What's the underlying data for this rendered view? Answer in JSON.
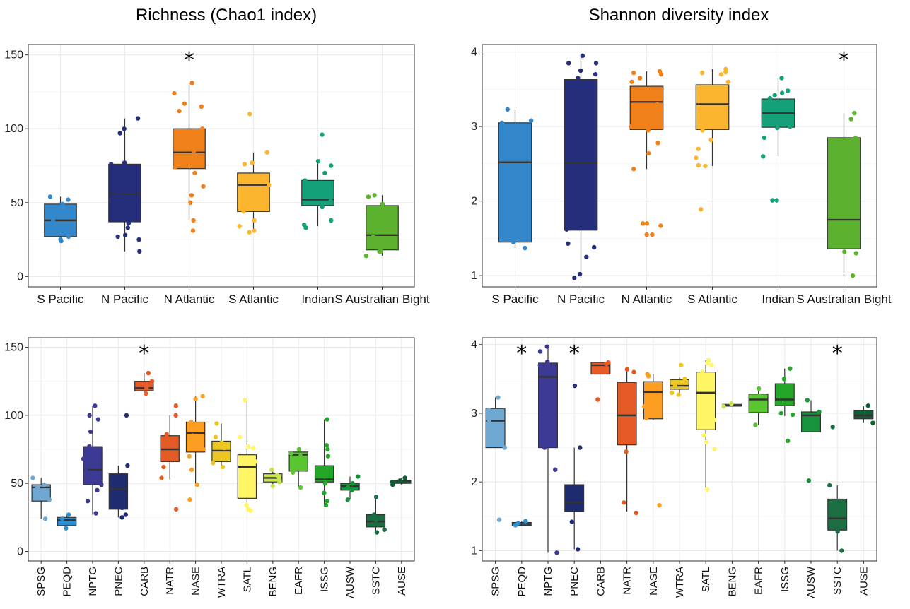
{
  "titles": {
    "left": "Richness (Chao1 index)",
    "right": "Shannon diversity index"
  },
  "chart_data": [
    {
      "type": "box",
      "title": "Richness (Chao1 index)",
      "xlabel": "",
      "ylabel": "",
      "ylim": [
        -7,
        157
      ],
      "yticks": [
        0,
        50,
        100,
        150
      ],
      "grid": true,
      "categories": [
        "S Pacific",
        "N Pacific",
        "N Atlantic",
        "S Atlantic",
        "Indian",
        "S Australian Bight"
      ],
      "colors": [
        "#3388cc",
        "#252e7a",
        "#f08019",
        "#fbb52e",
        "#14a078",
        "#5cb22e"
      ],
      "boxes": [
        {
          "q1": 27,
          "median": 38,
          "q3": 49,
          "lo": 26,
          "hi": 54,
          "pts": [
            54,
            52,
            49,
            47,
            38,
            30,
            27,
            25,
            24
          ]
        },
        {
          "q1": 37,
          "median": 56,
          "q3": 76,
          "lo": 17,
          "hi": 107,
          "pts": [
            107,
            100,
            97,
            77,
            76,
            70,
            55,
            45,
            36,
            33,
            28,
            27,
            25,
            17
          ]
        },
        {
          "q1": 73,
          "median": 84,
          "q3": 100,
          "lo": 38,
          "hi": 131,
          "pts": [
            131,
            124,
            117,
            115,
            112,
            100,
            85,
            82,
            74,
            70,
            61,
            55,
            50,
            38,
            31
          ]
        },
        {
          "q1": 44,
          "median": 62,
          "q3": 70,
          "lo": 30,
          "hi": 84,
          "pts": [
            110,
            84,
            77,
            76,
            66,
            62,
            49,
            44,
            38,
            34,
            31,
            30
          ]
        },
        {
          "q1": 48,
          "median": 52,
          "q3": 65,
          "lo": 34,
          "hi": 78,
          "pts": [
            96,
            78,
            75,
            70,
            65,
            55,
            51,
            47,
            38,
            35,
            33
          ]
        },
        {
          "q1": 18,
          "median": 28,
          "q3": 48,
          "lo": 14,
          "hi": 55,
          "pts": [
            55,
            54,
            49,
            27,
            17,
            17,
            14
          ]
        }
      ],
      "annotations": [
        {
          "category": "N Atlantic",
          "text": "*"
        }
      ]
    },
    {
      "type": "box",
      "title": "Shannon diversity index",
      "xlabel": "",
      "ylabel": "",
      "ylim": [
        0.85,
        4.1
      ],
      "yticks": [
        1,
        2,
        3,
        4
      ],
      "grid": true,
      "categories": [
        "S Pacific",
        "N Pacific",
        "N Atlantic",
        "S Atlantic",
        "Indian",
        "S Australian Bight"
      ],
      "colors": [
        "#3388cc",
        "#252e7a",
        "#f08019",
        "#fbb52e",
        "#14a078",
        "#5cb22e"
      ],
      "boxes": [
        {
          "q1": 1.45,
          "median": 2.52,
          "q3": 3.05,
          "lo": 1.37,
          "hi": 3.23,
          "pts": [
            3.23,
            3.08,
            3.05,
            1.45,
            1.37
          ]
        },
        {
          "q1": 1.61,
          "median": 2.51,
          "q3": 3.63,
          "lo": 0.97,
          "hi": 3.95,
          "pts": [
            3.95,
            3.85,
            3.85,
            3.75,
            3.7,
            3.65,
            1.62,
            1.43,
            1.38,
            1.25,
            1.02,
            0.97
          ]
        },
        {
          "q1": 2.96,
          "median": 3.33,
          "q3": 3.54,
          "lo": 2.43,
          "hi": 3.74,
          "pts": [
            3.74,
            3.72,
            3.7,
            3.65,
            3.6,
            3.5,
            3.3,
            3.0,
            2.95,
            2.78,
            2.64,
            2.43,
            1.7,
            1.7,
            1.67,
            1.55,
            1.55
          ]
        },
        {
          "q1": 2.96,
          "median": 3.3,
          "q3": 3.56,
          "lo": 2.47,
          "hi": 3.77,
          "pts": [
            3.77,
            3.73,
            3.72,
            3.7,
            3.6,
            3.45,
            3.4,
            2.95,
            2.82,
            2.7,
            2.58,
            2.48,
            2.47,
            1.89
          ]
        },
        {
          "q1": 2.99,
          "median": 3.18,
          "q3": 3.37,
          "lo": 2.6,
          "hi": 3.65,
          "pts": [
            3.65,
            3.48,
            3.45,
            3.42,
            3.38,
            3.05,
            3.0,
            2.98,
            2.85,
            2.6,
            2.01,
            2.01
          ]
        },
        {
          "q1": 1.36,
          "median": 1.75,
          "q3": 2.85,
          "lo": 1.0,
          "hi": 3.18,
          "pts": [
            3.18,
            3.1,
            2.85,
            1.32,
            1.3,
            1.0
          ]
        }
      ],
      "annotations": [
        {
          "category": "S Australian Bight",
          "text": "*"
        }
      ]
    },
    {
      "type": "box",
      "title": "",
      "xlabel": "",
      "ylabel": "",
      "ylim": [
        -7,
        157
      ],
      "yticks": [
        0,
        50,
        100,
        150
      ],
      "grid": true,
      "categories": [
        "SPSG",
        "PEQD",
        "NPTG",
        "PNEC",
        "CARB",
        "NATR",
        "NASE",
        "WTRA",
        "SATL",
        "BENG",
        "EAFR",
        "ISSG",
        "AUSW",
        "SSTC",
        "AUSE"
      ],
      "colors": [
        "#6fa8d2",
        "#2e8fd0",
        "#3d3a96",
        "#1e2b6e",
        "#ea5a26",
        "#e45a27",
        "#fb9e21",
        "#ecc621",
        "#fff565",
        "#c8e650",
        "#58c531",
        "#24a628",
        "#16933b",
        "#1a6e42",
        "#0d5e35"
      ],
      "boxes": [
        {
          "q1": 37,
          "median": 47,
          "q3": 49,
          "lo": 24,
          "hi": 54,
          "pts": [
            54,
            49,
            47,
            45,
            38,
            24
          ]
        },
        {
          "q1": 19,
          "median": 23,
          "q3": 25,
          "lo": 17,
          "hi": 27,
          "pts": [
            27,
            24,
            21,
            17
          ]
        },
        {
          "q1": 49,
          "median": 60,
          "q3": 77,
          "lo": 27,
          "hi": 107,
          "pts": [
            107,
            100,
            97,
            88,
            77,
            68,
            59,
            49,
            45,
            37,
            28
          ]
        },
        {
          "q1": 31,
          "median": 46,
          "q3": 57,
          "lo": 25,
          "hi": 63,
          "pts": [
            100,
            63,
            56,
            32,
            27,
            25
          ]
        },
        {
          "q1": 118,
          "median": 120,
          "q3": 125,
          "lo": 115,
          "hi": 131,
          "pts": [
            131,
            125,
            120,
            116
          ]
        },
        {
          "q1": 66,
          "median": 75,
          "q3": 85,
          "lo": 53,
          "hi": 100,
          "pts": [
            107,
            100,
            86,
            70,
            62,
            54,
            31
          ]
        },
        {
          "q1": 73,
          "median": 87,
          "q3": 95,
          "lo": 50,
          "hi": 114,
          "pts": [
            114,
            112,
            95,
            85,
            80,
            75,
            70,
            60,
            49,
            38
          ]
        },
        {
          "q1": 66,
          "median": 74,
          "q3": 81,
          "lo": 61,
          "hi": 94,
          "pts": [
            94,
            84,
            80,
            76,
            70,
            65,
            62
          ]
        },
        {
          "q1": 39,
          "median": 62,
          "q3": 71,
          "lo": 30,
          "hi": 111,
          "pts": [
            111,
            84,
            77,
            76,
            66,
            49,
            44,
            34,
            31,
            30
          ]
        },
        {
          "q1": 51,
          "median": 54,
          "q3": 57,
          "lo": 48,
          "hi": 60,
          "pts": [
            60,
            56,
            54,
            51,
            48
          ]
        },
        {
          "q1": 59,
          "median": 71,
          "q3": 73,
          "lo": 47,
          "hi": 75,
          "pts": [
            75,
            72,
            70,
            58,
            47
          ]
        },
        {
          "q1": 51,
          "median": 53,
          "q3": 63,
          "lo": 33,
          "hi": 97,
          "pts": [
            97,
            78,
            75,
            70,
            60,
            55,
            50,
            43,
            37,
            34
          ]
        },
        {
          "q1": 45,
          "median": 48,
          "q3": 50,
          "lo": 38,
          "hi": 55,
          "pts": [
            55,
            50,
            47,
            45,
            38
          ]
        },
        {
          "q1": 18,
          "median": 22,
          "q3": 27,
          "lo": 14,
          "hi": 40,
          "pts": [
            40,
            27,
            23,
            20,
            16,
            14
          ]
        },
        {
          "q1": 50,
          "median": 52,
          "q3": 52,
          "lo": 49,
          "hi": 54,
          "pts": [
            54,
            52,
            51,
            49
          ]
        }
      ],
      "annotations": [
        {
          "category": "CARB",
          "text": "*"
        }
      ]
    },
    {
      "type": "box",
      "title": "",
      "xlabel": "",
      "ylabel": "",
      "ylim": [
        0.85,
        4.1
      ],
      "yticks": [
        1,
        2,
        3,
        4
      ],
      "grid": true,
      "categories": [
        "SPSG",
        "PEQD",
        "NPTG",
        "PNEC",
        "CARB",
        "NATR",
        "NASE",
        "WTRA",
        "SATL",
        "BENG",
        "EAFR",
        "ISSG",
        "AUSW",
        "SSTC",
        "AUSE"
      ],
      "colors": [
        "#6fa8d2",
        "#2e8fd0",
        "#3d3a96",
        "#1e2b6e",
        "#ea5a26",
        "#e45a27",
        "#fb9e21",
        "#ecc621",
        "#fff565",
        "#c8e650",
        "#58c531",
        "#24a628",
        "#16933b",
        "#1a6e42",
        "#0d5e35"
      ],
      "boxes": [
        {
          "q1": 2.5,
          "median": 2.89,
          "q3": 3.07,
          "lo": 2.5,
          "hi": 3.23,
          "pts": [
            3.23,
            3.05,
            2.9,
            2.5,
            1.45
          ]
        },
        {
          "q1": 1.37,
          "median": 1.39,
          "q3": 1.41,
          "lo": 1.37,
          "hi": 1.43,
          "pts": [
            1.43,
            1.4,
            1.37
          ]
        },
        {
          "q1": 2.5,
          "median": 3.53,
          "q3": 3.73,
          "lo": 0.97,
          "hi": 3.97,
          "pts": [
            3.97,
            3.9,
            3.75,
            3.7,
            2.5,
            2.18,
            0.97
          ]
        },
        {
          "q1": 1.57,
          "median": 1.7,
          "q3": 1.96,
          "lo": 1.02,
          "hi": 2.5,
          "pts": [
            3.4,
            2.5,
            1.42,
            1.02
          ]
        },
        {
          "q1": 3.57,
          "median": 3.7,
          "q3": 3.74,
          "lo": 3.57,
          "hi": 3.74,
          "pts": [
            3.74,
            3.72,
            3.2
          ]
        },
        {
          "q1": 2.54,
          "median": 2.97,
          "q3": 3.45,
          "lo": 1.57,
          "hi": 3.64,
          "pts": [
            3.64,
            3.6,
            2.44,
            1.7,
            1.55
          ]
        },
        {
          "q1": 2.92,
          "median": 3.31,
          "q3": 3.46,
          "lo": 2.9,
          "hi": 3.57,
          "pts": [
            3.57,
            3.54,
            3.2,
            3.1,
            2.93,
            1.66
          ]
        },
        {
          "q1": 3.35,
          "median": 3.4,
          "q3": 3.49,
          "lo": 3.27,
          "hi": 3.52,
          "pts": [
            3.7,
            3.5,
            3.4,
            3.3,
            3.27
          ]
        },
        {
          "q1": 2.76,
          "median": 3.3,
          "q3": 3.6,
          "lo": 1.89,
          "hi": 3.77,
          "pts": [
            3.77,
            3.73,
            3.7,
            3.6,
            2.9,
            2.68,
            2.58,
            2.48,
            1.89
          ]
        },
        {
          "q1": 3.11,
          "median": 3.11,
          "q3": 3.13,
          "lo": 3.1,
          "hi": 3.14,
          "pts": [
            3.14,
            3.1
          ]
        },
        {
          "q1": 3.01,
          "median": 3.2,
          "q3": 3.28,
          "lo": 2.83,
          "hi": 3.36,
          "pts": [
            3.36,
            3.25,
            3.05,
            2.83
          ]
        },
        {
          "q1": 3.11,
          "median": 3.2,
          "q3": 3.43,
          "lo": 2.96,
          "hi": 3.65,
          "pts": [
            3.65,
            3.5,
            3.3,
            3.15,
            3.0,
            2.98,
            2.6
          ]
        },
        {
          "q1": 2.73,
          "median": 2.97,
          "q3": 3.02,
          "lo": 2.73,
          "hi": 3.19,
          "pts": [
            3.19,
            3.02,
            2.02
          ]
        },
        {
          "q1": 1.3,
          "median": 1.47,
          "q3": 1.75,
          "lo": 1.0,
          "hi": 1.95,
          "pts": [
            2.8,
            1.95,
            1.35,
            1.28,
            1.0
          ]
        },
        {
          "q1": 2.92,
          "median": 2.97,
          "q3": 3.04,
          "lo": 2.86,
          "hi": 3.1,
          "pts": [
            3.11,
            3.0,
            2.86
          ]
        }
      ],
      "annotations": [
        {
          "category": "PEQD",
          "text": "*"
        },
        {
          "category": "PNEC",
          "text": "*"
        },
        {
          "category": "SSTC",
          "text": "*"
        }
      ]
    }
  ]
}
